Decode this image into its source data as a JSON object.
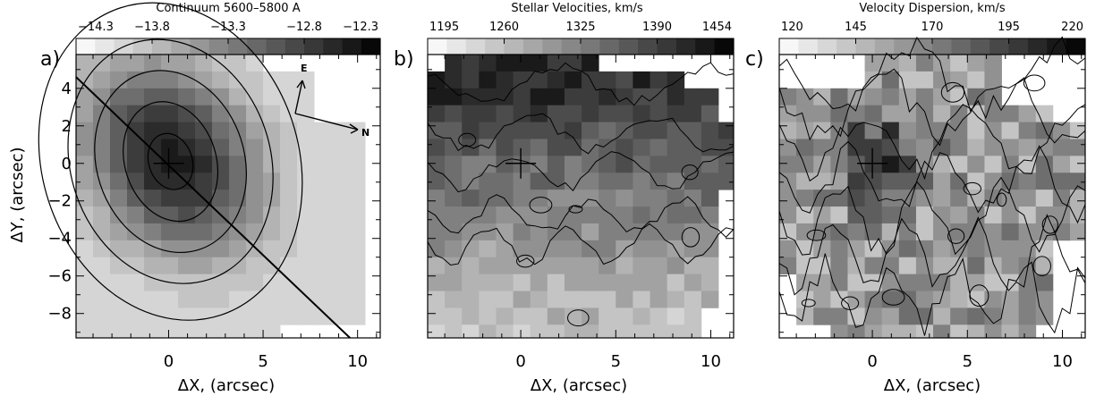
{
  "chart_data": [
    {
      "type": "heatmap",
      "panel_label": "a)",
      "title": "Continuum 5600–5800 A",
      "colorbar_ticks": [
        "−14.3",
        "−13.8",
        "−13.3",
        "−12.8",
        "−12.3"
      ],
      "colorbar_range": [
        -14.3,
        -12.3
      ],
      "xlabel": "ΔX, (arcsec)",
      "ylabel": "ΔY, (arcsec)",
      "x_ticks": [
        "0",
        "5",
        "10"
      ],
      "y_ticks": [
        "4",
        "2",
        "0",
        "−2",
        "−4",
        "−6",
        "−8"
      ],
      "xlim": [
        -4.9,
        11.2
      ],
      "ylim": [
        -9.3,
        5.8
      ],
      "cross_at": [
        0,
        0
      ],
      "compass": [
        "E",
        "N"
      ],
      "major_axis_line": {
        "from": [
          -4.9,
          4.6
        ],
        "to": [
          9.6,
          -9.3
        ]
      },
      "contours": "elliptical isophotes centred near (0, 0)"
    },
    {
      "type": "heatmap",
      "panel_label": "b)",
      "title": "Stellar Velocities, km/s",
      "colorbar_ticks": [
        "1195",
        "1260",
        "1325",
        "1390",
        "1454"
      ],
      "colorbar_range": [
        1195,
        1454
      ],
      "xlabel": "ΔX, (arcsec)",
      "x_ticks": [
        "0",
        "5",
        "10"
      ],
      "xlim": [
        -4.9,
        11.2
      ],
      "ylim": [
        -9.3,
        5.8
      ],
      "cross_at": [
        0,
        0
      ],
      "pattern": "high velocities (dark) to the north-top, low velocities (light) in the lower half"
    },
    {
      "type": "heatmap",
      "panel_label": "c)",
      "title": "Velocity Dispersion, km/s",
      "colorbar_ticks": [
        "120",
        "145",
        "170",
        "195",
        "220"
      ],
      "colorbar_range": [
        120,
        220
      ],
      "xlabel": "ΔX, (arcsec)",
      "x_ticks": [
        "0",
        "5",
        "10"
      ],
      "xlim": [
        -4.9,
        11.2
      ],
      "ylim": [
        -9.3,
        5.8
      ],
      "cross_at": [
        0,
        0
      ],
      "pattern": "dispersion peak (dark) near the centre, patchy elsewhere"
    }
  ]
}
